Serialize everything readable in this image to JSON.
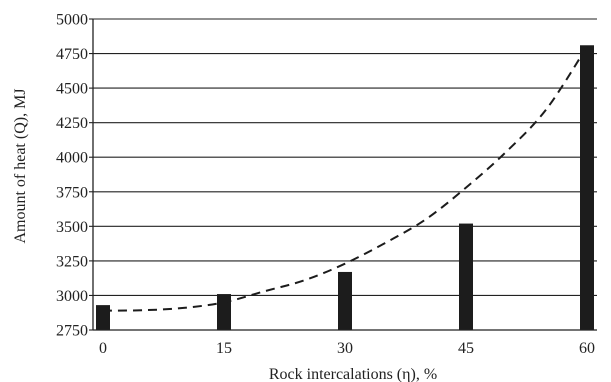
{
  "chart_data": {
    "type": "bar",
    "xlabel": "Rock intercalations (η), %",
    "ylabel": "Amount of heat (Q), MJ",
    "x_tick_labels": [
      "0",
      "15",
      "30",
      "45",
      "60"
    ],
    "categories": [
      0,
      15,
      30,
      45,
      60
    ],
    "values": [
      2930,
      3010,
      3170,
      3520,
      4810
    ],
    "y_tick_labels": [
      "2750",
      "3000",
      "3250",
      "3500",
      "3750",
      "4000",
      "4250",
      "4500",
      "4750",
      "5000"
    ],
    "ylim": [
      2750,
      5000
    ],
    "yticks": [
      2750,
      3000,
      3250,
      3500,
      3750,
      4000,
      4250,
      4500,
      4750,
      5000
    ],
    "grid": "horizontal",
    "trend_line": {
      "style": "dashed",
      "x": [
        0,
        5,
        10,
        15,
        20,
        25,
        30,
        35,
        40,
        45,
        50,
        55,
        60
      ],
      "y": [
        2890,
        2893,
        2910,
        2950,
        3030,
        3110,
        3230,
        3380,
        3550,
        3780,
        4040,
        4350,
        4800
      ]
    },
    "colors": {
      "bar": "#1c1c1c",
      "grid": "#222222",
      "axis": "#222222",
      "trend": "#1c1c1c"
    }
  }
}
